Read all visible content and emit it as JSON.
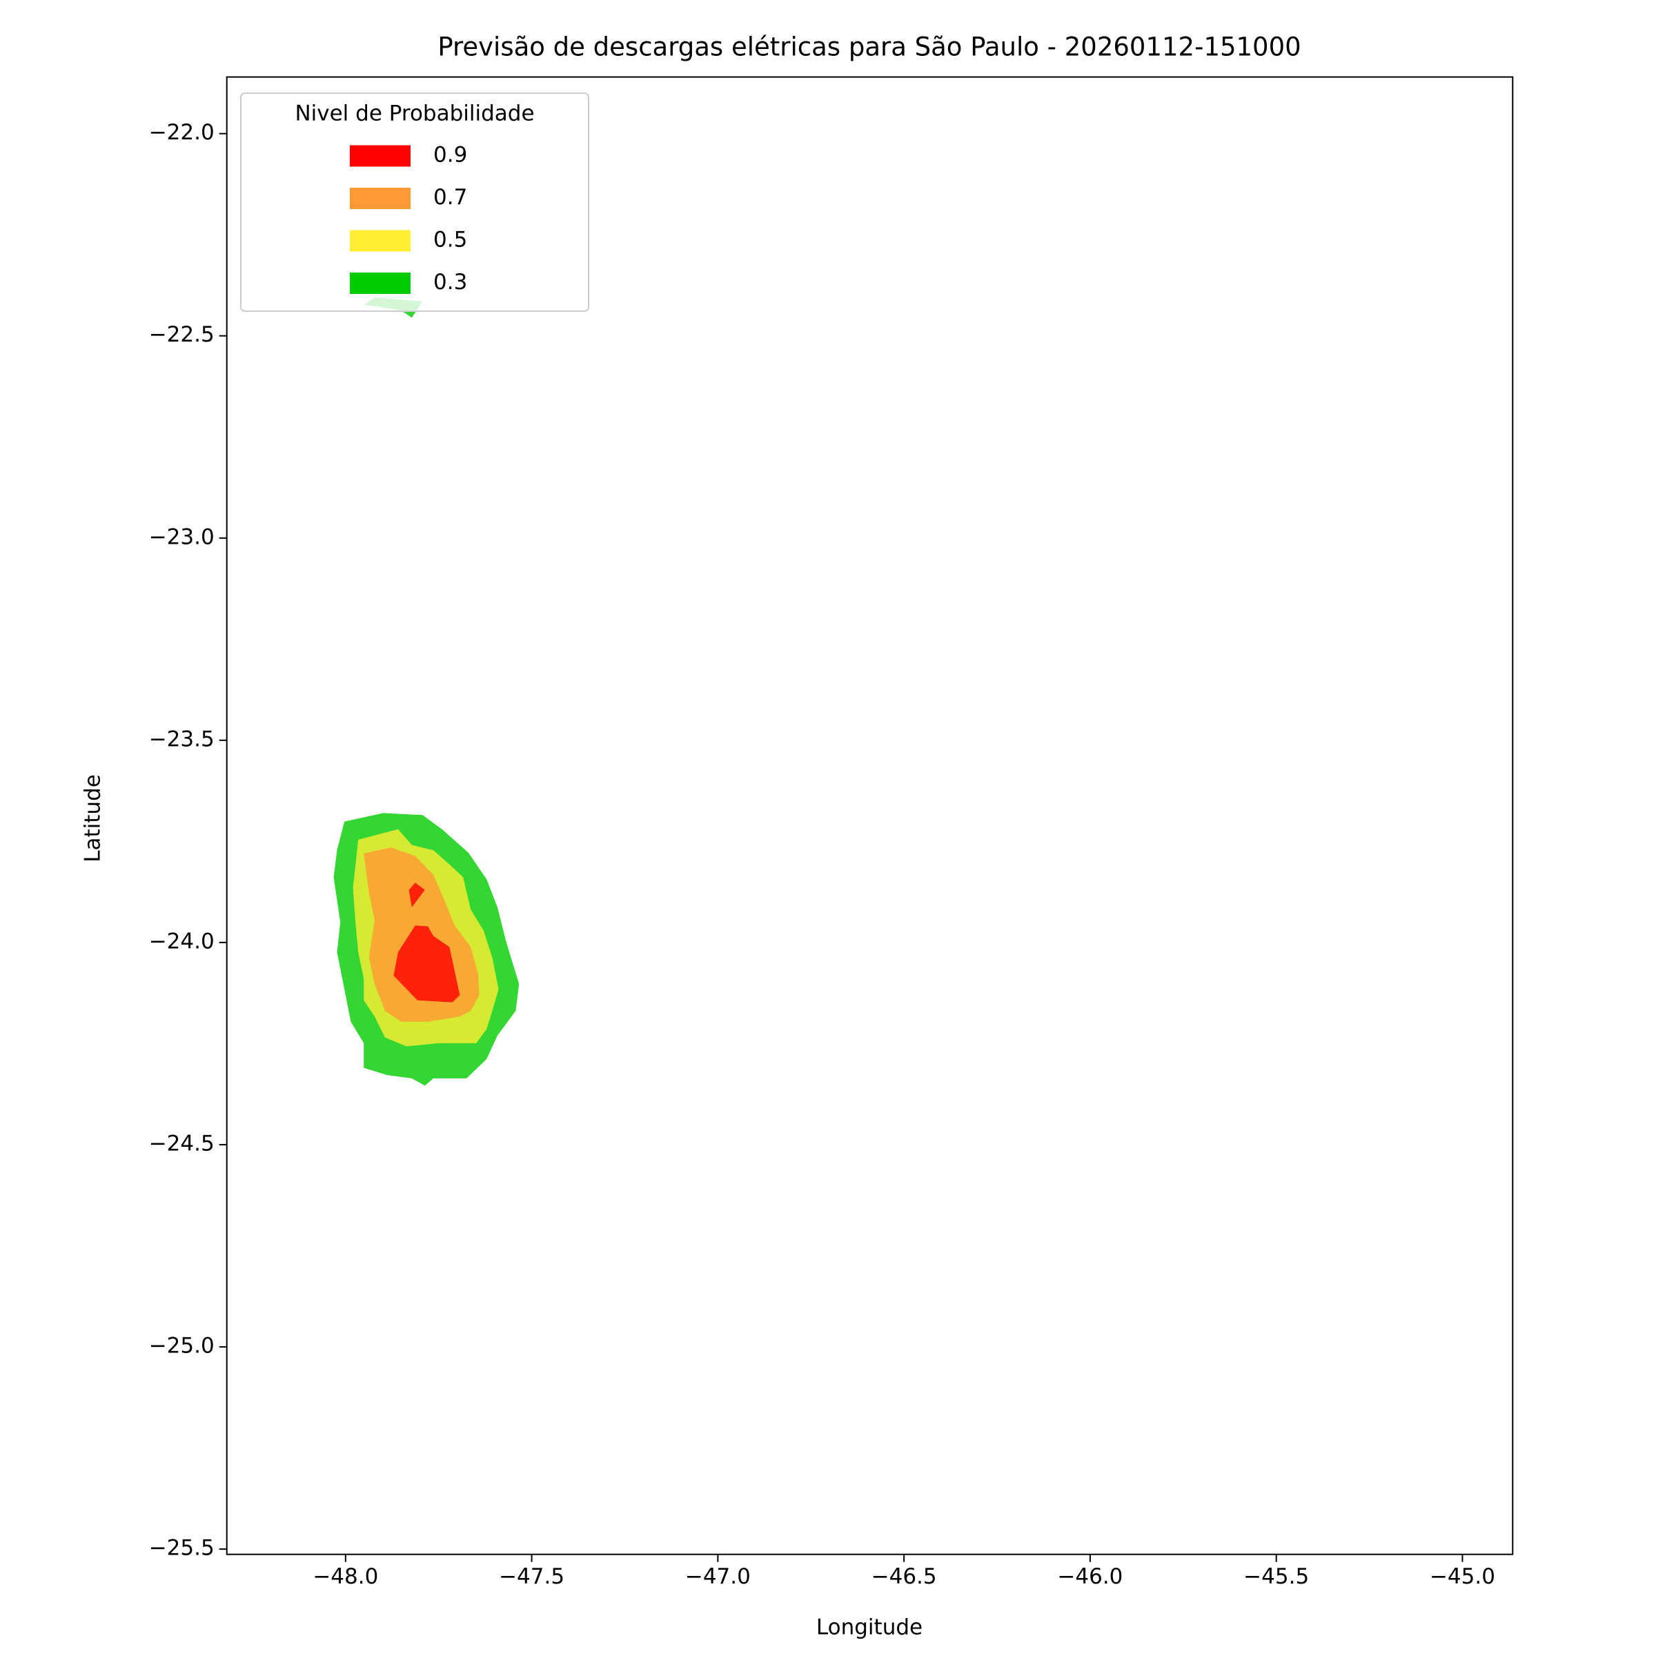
{
  "chart_data": {
    "type": "contour",
    "title": "Previsão de descargas elétricas para São Paulo - 20260112-151000",
    "xlabel": "Longitude",
    "ylabel": "Latitude",
    "legend_title": "Nivel de Probabilidade",
    "legend": "upper left",
    "alpha": 0.8,
    "xlim": [
      -48.319,
      -44.865
    ],
    "ylim": [
      -25.513,
      -21.86
    ],
    "xticks": [
      {
        "value": -48,
        "label": "−48.0"
      },
      {
        "value": -47.5,
        "label": "−47.5"
      },
      {
        "value": -47,
        "label": "−47.0"
      },
      {
        "value": -46.5,
        "label": "−46.5"
      },
      {
        "value": -46,
        "label": "−46.0"
      },
      {
        "value": -45.5,
        "label": "−45.5"
      },
      {
        "value": -45,
        "label": "−45.0"
      }
    ],
    "yticks": [
      {
        "value": -22,
        "label": "−22.0"
      },
      {
        "value": -22.5,
        "label": "−22.5"
      },
      {
        "value": -23,
        "label": "−23.0"
      },
      {
        "value": -23.5,
        "label": "−23.5"
      },
      {
        "value": -24,
        "label": "−24.0"
      },
      {
        "value": -24.5,
        "label": "−24.5"
      },
      {
        "value": -25,
        "label": "−25.0"
      },
      {
        "value": -25.5,
        "label": "−25.5"
      }
    ],
    "series": [
      {
        "name": "0.9",
        "color": "#ff0000",
        "polygons": [
          [
            [
              -47.859,
              -24.024
            ],
            [
              -47.813,
              -23.958
            ],
            [
              -47.779,
              -23.96
            ],
            [
              -47.764,
              -23.984
            ],
            [
              -47.721,
              -24.011
            ],
            [
              -47.693,
              -24.13
            ],
            [
              -47.713,
              -24.148
            ],
            [
              -47.807,
              -24.143
            ],
            [
              -47.871,
              -24.082
            ]
          ],
          [
            [
              -47.83,
              -23.87
            ],
            [
              -47.813,
              -23.852
            ],
            [
              -47.787,
              -23.87
            ],
            [
              -47.822,
              -23.913
            ]
          ]
        ]
      },
      {
        "name": "0.7",
        "color": "#ff9933",
        "polygons": [
          [
            [
              -47.951,
              -23.78
            ],
            [
              -47.879,
              -23.765
            ],
            [
              -47.813,
              -23.786
            ],
            [
              -47.764,
              -23.833
            ],
            [
              -47.736,
              -23.892
            ],
            [
              -47.707,
              -23.958
            ],
            [
              -47.664,
              -24.011
            ],
            [
              -47.644,
              -24.077
            ],
            [
              -47.641,
              -24.13
            ],
            [
              -47.664,
              -24.169
            ],
            [
              -47.693,
              -24.183
            ],
            [
              -47.779,
              -24.196
            ],
            [
              -47.851,
              -24.196
            ],
            [
              -47.894,
              -24.169
            ],
            [
              -47.922,
              -24.103
            ],
            [
              -47.937,
              -24.037
            ],
            [
              -47.922,
              -23.944
            ],
            [
              -47.937,
              -23.878
            ]
          ]
        ]
      },
      {
        "name": "0.5",
        "color": "#ffee33",
        "polygons": [
          [
            [
              -47.966,
              -23.746
            ],
            [
              -47.859,
              -23.72
            ],
            [
              -47.822,
              -23.759
            ],
            [
              -47.764,
              -23.772
            ],
            [
              -47.721,
              -23.807
            ],
            [
              -47.684,
              -23.839
            ],
            [
              -47.664,
              -23.918
            ],
            [
              -47.629,
              -23.971
            ],
            [
              -47.606,
              -24.037
            ],
            [
              -47.589,
              -24.116
            ],
            [
              -47.606,
              -24.169
            ],
            [
              -47.621,
              -24.214
            ],
            [
              -47.649,
              -24.249
            ],
            [
              -47.75,
              -24.249
            ],
            [
              -47.836,
              -24.257
            ],
            [
              -47.894,
              -24.235
            ],
            [
              -47.922,
              -24.183
            ],
            [
              -47.951,
              -24.143
            ],
            [
              -47.951,
              -24.09
            ],
            [
              -47.966,
              -24.024
            ],
            [
              -47.974,
              -23.944
            ],
            [
              -47.98,
              -23.865
            ]
          ]
        ]
      },
      {
        "name": "0.3",
        "color": "#00cc00",
        "polygons": [
          [
            [
              -48.003,
              -23.701
            ],
            [
              -47.899,
              -23.68
            ],
            [
              -47.793,
              -23.685
            ],
            [
              -47.741,
              -23.72
            ],
            [
              -47.67,
              -23.778
            ],
            [
              -47.621,
              -23.844
            ],
            [
              -47.592,
              -23.913
            ],
            [
              -47.569,
              -23.997
            ],
            [
              -47.534,
              -24.103
            ],
            [
              -47.543,
              -24.169
            ],
            [
              -47.592,
              -24.23
            ],
            [
              -47.621,
              -24.288
            ],
            [
              -47.675,
              -24.336
            ],
            [
              -47.764,
              -24.336
            ],
            [
              -47.787,
              -24.354
            ],
            [
              -47.822,
              -24.336
            ],
            [
              -47.888,
              -24.328
            ],
            [
              -47.951,
              -24.31
            ],
            [
              -47.951,
              -24.249
            ],
            [
              -47.986,
              -24.196
            ],
            [
              -48.003,
              -24.116
            ],
            [
              -48.023,
              -24.024
            ],
            [
              -48.014,
              -23.95
            ],
            [
              -48.032,
              -23.839
            ],
            [
              -48.023,
              -23.772
            ]
          ],
          [
            [
              -47.951,
              -22.423
            ],
            [
              -47.922,
              -22.405
            ],
            [
              -47.793,
              -22.415
            ],
            [
              -47.822,
              -22.455
            ],
            [
              -47.851,
              -22.437
            ]
          ]
        ]
      }
    ]
  }
}
